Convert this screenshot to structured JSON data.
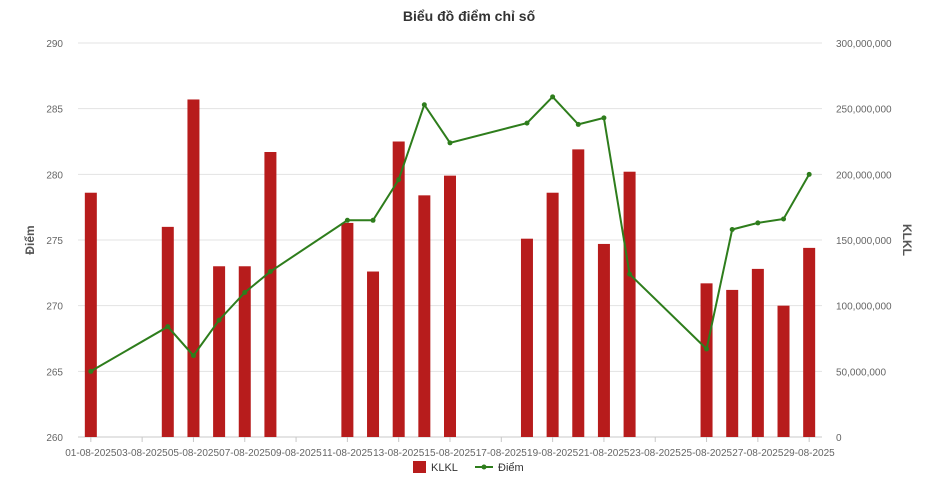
{
  "chart_data": {
    "type": "bar",
    "title": "Biểu đồ điểm chỉ số",
    "ylabel": "Điểm",
    "y2label": "KLKL",
    "ylim": [
      260,
      290
    ],
    "y2lim": [
      0,
      300000000
    ],
    "yticks": [
      "260",
      "265",
      "270",
      "275",
      "280",
      "285",
      "290"
    ],
    "y2ticks": [
      "0",
      "50,000,000",
      "100,000,000",
      "150,000,000",
      "200,000,000",
      "250,000,000",
      "300,000,000"
    ],
    "x_tick_labels": [
      "01-08-2025",
      "03-08-2025",
      "05-08-2025",
      "07-08-2025",
      "09-08-2025",
      "11-08-2025",
      "13-08-2025",
      "15-08-2025",
      "17-08-2025",
      "19-08-2025",
      "21-08-2025",
      "23-08-2025",
      "25-08-2025",
      "27-08-2025",
      "29-08-2025"
    ],
    "grid": true,
    "legend_position": "bottom",
    "colors": {
      "bar": "#b71c1c",
      "line": "#2e7d1c"
    },
    "series": [
      {
        "name": "KLKL",
        "type": "bar",
        "axis": "right",
        "x": [
          "01-08-2025",
          "04-08-2025",
          "05-08-2025",
          "06-08-2025",
          "07-08-2025",
          "08-08-2025",
          "11-08-2025",
          "12-08-2025",
          "13-08-2025",
          "14-08-2025",
          "15-08-2025",
          "18-08-2025",
          "19-08-2025",
          "20-08-2025",
          "21-08-2025",
          "22-08-2025",
          "25-08-2025",
          "26-08-2025",
          "27-08-2025",
          "28-08-2025",
          "29-08-2025"
        ],
        "values": [
          186000000,
          160000000,
          257000000,
          130000000,
          130000000,
          217000000,
          163000000,
          126000000,
          225000000,
          184000000,
          199000000,
          151000000,
          186000000,
          219000000,
          147000000,
          202000000,
          117000000,
          112000000,
          128000000,
          100000000,
          144000000
        ]
      },
      {
        "name": "Điểm",
        "type": "line",
        "axis": "left",
        "x": [
          "01-08-2025",
          "04-08-2025",
          "05-08-2025",
          "06-08-2025",
          "07-08-2025",
          "08-08-2025",
          "11-08-2025",
          "12-08-2025",
          "13-08-2025",
          "14-08-2025",
          "15-08-2025",
          "18-08-2025",
          "19-08-2025",
          "20-08-2025",
          "21-08-2025",
          "22-08-2025",
          "25-08-2025",
          "26-08-2025",
          "27-08-2025",
          "28-08-2025",
          "29-08-2025"
        ],
        "values": [
          265.0,
          268.4,
          266.2,
          268.9,
          271.0,
          272.6,
          276.5,
          276.5,
          279.6,
          285.3,
          282.4,
          283.9,
          285.9,
          283.8,
          284.3,
          272.4,
          266.7,
          275.8,
          276.3,
          276.6,
          280.0
        ]
      }
    ]
  }
}
